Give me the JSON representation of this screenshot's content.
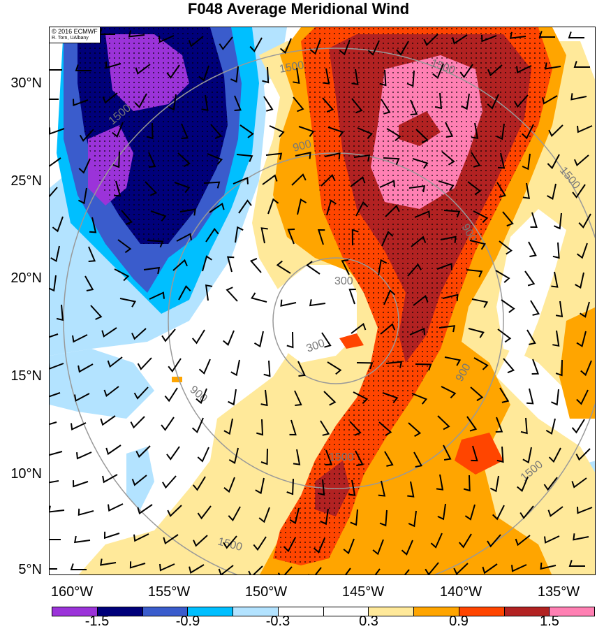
{
  "title": "F048 Average Meridional Wind",
  "credit": {
    "line1": "© 2016 ECMWF",
    "line2": "R. Torn, UAlbany"
  },
  "lat_labels": [
    "30°N",
    "25°N",
    "20°N",
    "15°N",
    "10°N",
    "5°N"
  ],
  "lon_labels": [
    "160°W",
    "155°W",
    "150°W",
    "145°W",
    "140°W",
    "135°W"
  ],
  "colorbar": {
    "colors": [
      "#9b33d9",
      "#00007a",
      "#3a5ccc",
      "#00bfff",
      "#b3e3ff",
      "#ffffff",
      "#ffffff",
      "#ffe99a",
      "#ffa500",
      "#ff4500",
      "#b22222",
      "#ff80b3"
    ],
    "labels": [
      "-1.5",
      "-0.9",
      "-0.3",
      "0.3",
      "0.9",
      "1.5"
    ]
  },
  "range_ring_labels": [
    "300",
    "300",
    "900",
    "900",
    "900",
    "900",
    "1500",
    "1500",
    "1500",
    "1500",
    "1500",
    "1500",
    "1500"
  ]
}
